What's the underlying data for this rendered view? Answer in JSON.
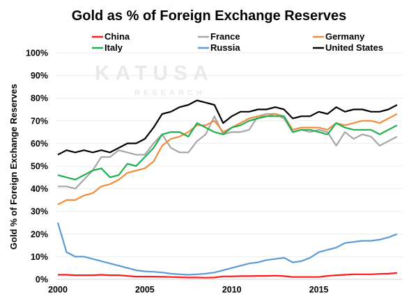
{
  "chart_data": {
    "type": "line",
    "title": "Gold as % of Foreign Exchange Reserves",
    "xlabel": "",
    "ylabel": "Gold % of Foreign Exchange Reserves",
    "xlim": [
      2000,
      2019.5
    ],
    "ylim": [
      0,
      100
    ],
    "x_ticks": [
      2000,
      2005,
      2010,
      2015
    ],
    "x_tick_labels": [
      "2000",
      "2005",
      "2010",
      "2015"
    ],
    "y_ticks": [
      0,
      10,
      20,
      30,
      40,
      50,
      60,
      70,
      80,
      90,
      100
    ],
    "y_tick_labels": [
      "0%",
      "10%",
      "20%",
      "30%",
      "40%",
      "50%",
      "60%",
      "70%",
      "80%",
      "90%",
      "100%"
    ],
    "grid": true,
    "legend_position": "top",
    "watermark": [
      "KATUSA",
      "RESEARCH"
    ],
    "x": [
      2000,
      2000.5,
      2001,
      2001.5,
      2002,
      2002.5,
      2003,
      2003.5,
      2004,
      2004.5,
      2005,
      2005.5,
      2006,
      2006.5,
      2007,
      2007.5,
      2008,
      2008.5,
      2009,
      2009.5,
      2010,
      2010.5,
      2011,
      2011.5,
      2012,
      2012.5,
      2013,
      2013.5,
      2014,
      2014.5,
      2015,
      2015.5,
      2016,
      2016.5,
      2017,
      2017.5,
      2018,
      2018.5,
      2019,
      2019.5
    ],
    "series": [
      {
        "name": "China",
        "color": "#ff1a1a",
        "values": [
          2,
          2,
          1.8,
          1.8,
          1.8,
          2,
          1.8,
          1.8,
          1.5,
          1.2,
          1.2,
          1.2,
          1.1,
          1,
          0.9,
          0.8,
          0.8,
          0.7,
          0.8,
          1.3,
          1.3,
          1.4,
          1.4,
          1.5,
          1.5,
          1.6,
          1.4,
          1,
          1,
          1,
          1,
          1.5,
          1.8,
          2,
          2.2,
          2.2,
          2.2,
          2.4,
          2.5,
          2.8
        ]
      },
      {
        "name": "France",
        "color": "#a6a6a6",
        "values": [
          41,
          41,
          40,
          44,
          48,
          54,
          54,
          57,
          56,
          55,
          55,
          60,
          64,
          58,
          56,
          56,
          61,
          64,
          72,
          64,
          65,
          65,
          66,
          72,
          73,
          73,
          71,
          65,
          66,
          65,
          66,
          65,
          59,
          65,
          62,
          64,
          63,
          59,
          61,
          63
        ]
      },
      {
        "name": "Germany",
        "color": "#f28c3c",
        "values": [
          33,
          35,
          35,
          37,
          38,
          41,
          42,
          44,
          47,
          48,
          49,
          52,
          59,
          62,
          63,
          65,
          68,
          68,
          70,
          65,
          67,
          69,
          71,
          72,
          72,
          73,
          72,
          66,
          67,
          67,
          67,
          66,
          69,
          68,
          69,
          70,
          70,
          69,
          71,
          73
        ]
      },
      {
        "name": "Italy",
        "color": "#1eb050",
        "values": [
          46,
          45,
          44,
          46,
          48,
          49,
          45,
          46,
          51,
          50,
          54,
          58,
          64,
          65,
          65,
          63,
          69,
          67,
          65,
          64,
          67,
          68,
          70,
          71,
          72,
          72,
          72,
          65,
          66,
          66,
          65,
          64,
          69,
          67,
          66,
          66,
          66,
          64,
          66,
          68
        ]
      },
      {
        "name": "Russia",
        "color": "#5b9bd5",
        "values": [
          25,
          12,
          10,
          10,
          9,
          8,
          7,
          6,
          5,
          4,
          3.5,
          3.3,
          3,
          2.5,
          2.2,
          2,
          2.2,
          2.5,
          3,
          4,
          5,
          6,
          7,
          7.5,
          8.5,
          9,
          9.5,
          7.5,
          8,
          9.5,
          12,
          13,
          14,
          16,
          16.5,
          17,
          17,
          17.5,
          18.5,
          20
        ]
      },
      {
        "name": "United States",
        "color": "#000000",
        "values": [
          55,
          57,
          56,
          57,
          56,
          57,
          56,
          58,
          60,
          60,
          62,
          67,
          73,
          74,
          76,
          77,
          79,
          78,
          77,
          69,
          72,
          74,
          74,
          75,
          75,
          76,
          75,
          71,
          72,
          72,
          74,
          73,
          76,
          74,
          75,
          75,
          74,
          74,
          75,
          77
        ]
      }
    ]
  }
}
